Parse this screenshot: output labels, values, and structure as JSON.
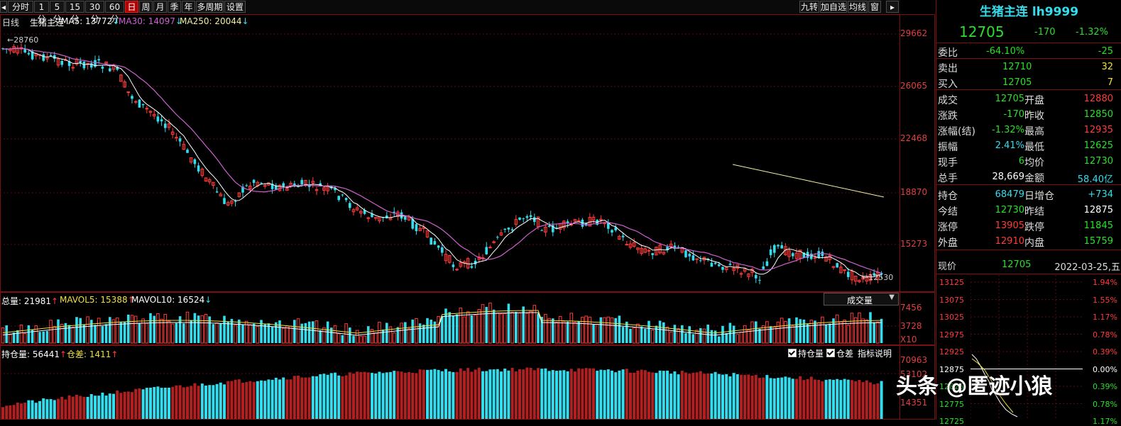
{
  "toolbar": {
    "left_buttons": [
      "分时",
      "1分",
      "5分",
      "15分",
      "30分",
      "60分",
      "日",
      "周",
      "月",
      "季",
      "年",
      "多周期",
      "设置"
    ],
    "active": "日",
    "right_buttons": [
      "九转",
      "加自选",
      "均线",
      "窗"
    ]
  },
  "kline": {
    "period_label": "日线",
    "name": "生猪主连",
    "ma5": "MA5: 13772",
    "ma30": "MA30: 14097",
    "ma250": "MA250: 20044",
    "price_axis": [
      "29662",
      "26065",
      "22468",
      "18870",
      "15273"
    ],
    "high_marker": "28760",
    "low_marker": "12530",
    "colors": {
      "up": "#ff3b3b",
      "down": "#33ddee",
      "ma5": "#ffffff",
      "ma30": "#d060d0",
      "ma250": "#f0f0a0"
    }
  },
  "volume": {
    "title": "总量: 21981",
    "mavol5": "MAVOL5: 15388",
    "mavol10": "MAVOL10: 16524",
    "dropdown": "成交量",
    "axis": [
      "7456",
      "3728",
      "X10"
    ]
  },
  "oi": {
    "title": "持仓量: 56441",
    "diff": "仓差: 1411",
    "check1": "持仓量",
    "check2": "仓差",
    "explain": "指标说明",
    "axis": [
      "70963",
      "53102",
      "14351"
    ]
  },
  "quote": {
    "title": "生猪主连 lh9999",
    "price": "12705",
    "change": "-170",
    "change_pct": "-1.32%",
    "weibi_label": "委比",
    "weibi_pct": "-64.10%",
    "weibi_val": "-25",
    "sell_label": "卖出",
    "sell_price": "12710",
    "sell_vol": "32",
    "buy_label": "买入",
    "buy_price": "12705",
    "buy_vol": "7",
    "rows": [
      {
        "l1": "成交",
        "v1": "12705",
        "c1": "green",
        "l2": "开盘",
        "v2": "12880",
        "c2": "red"
      },
      {
        "l1": "涨跌",
        "v1": "-170",
        "c1": "green",
        "l2": "昨收",
        "v2": "12850",
        "c2": "green"
      },
      {
        "l1": "涨幅(结)",
        "v1": "-1.32%",
        "c1": "green",
        "l2": "最高",
        "v2": "12935",
        "c2": "red"
      },
      {
        "l1": "振幅",
        "v1": "2.41%",
        "c1": "cyan",
        "l2": "最低",
        "v2": "12625",
        "c2": "green"
      },
      {
        "l1": "现手",
        "v1": "6",
        "c1": "green",
        "l2": "均价",
        "v2": "12730",
        "c2": "green"
      },
      {
        "l1": "总手",
        "v1": "28,669",
        "c1": "white",
        "l2": "金额",
        "v2": "58.40亿",
        "c2": "cyan"
      }
    ],
    "rows2": [
      {
        "l1": "持仓",
        "v1": "68479",
        "c1": "cyan",
        "l2": "日增仓",
        "v2": "+734",
        "c2": "cyan"
      },
      {
        "l1": "今结",
        "v1": "12730",
        "c1": "green",
        "l2": "昨结",
        "v2": "12875",
        "c2": "white"
      },
      {
        "l1": "涨停",
        "v1": "13905",
        "c1": "red",
        "l2": "跌停",
        "v2": "11845",
        "c2": "green"
      },
      {
        "l1": "外盘",
        "v1": "12910",
        "c1": "red",
        "l2": "内盘",
        "v2": "15759",
        "c2": "green"
      }
    ],
    "tick_label": "现价",
    "tick_price": "12705",
    "tick_date": "2022-03-25,五"
  },
  "intraday": {
    "prices": [
      "13125",
      "13075",
      "13025",
      "12975",
      "12925",
      "12875",
      "12825",
      "12775",
      "12725"
    ],
    "pcts": [
      "1.94%",
      "1.55%",
      "1.17%",
      "0.78%",
      "0.39%",
      "0.00%",
      "0.39%",
      "0.78%",
      "1.17%"
    ]
  },
  "watermark": "头条 @匿迹小狼"
}
